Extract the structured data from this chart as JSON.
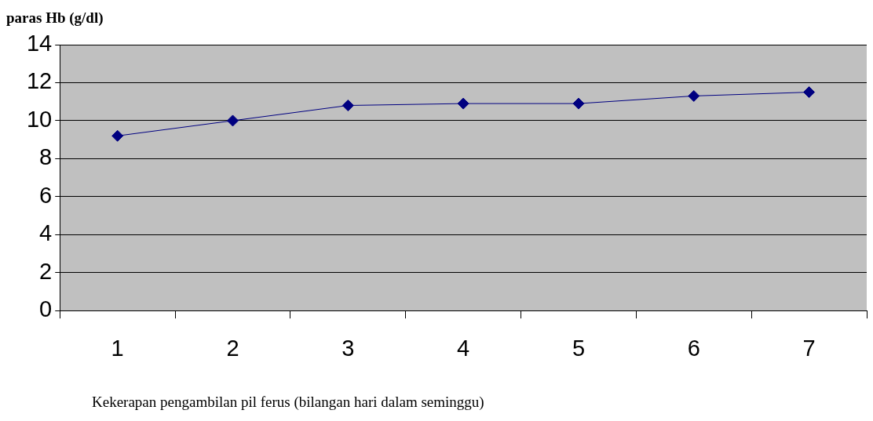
{
  "chart_data": {
    "type": "line",
    "ylabel": "paras Hb (g/dl)",
    "xlabel": "Kekerapan pengambilan pil ferus (bilangan hari dalam seminggu)",
    "categories": [
      "1",
      "2",
      "3",
      "4",
      "5",
      "6",
      "7"
    ],
    "series": [
      {
        "color": "#000080",
        "values": [
          9.2,
          10,
          10.8,
          10.9,
          10.9,
          11.3,
          11.5
        ]
      }
    ],
    "ylim": [
      0,
      14
    ],
    "yticks": [
      0,
      2,
      4,
      6,
      8,
      10,
      12,
      14
    ],
    "grid": "y",
    "legend": false,
    "marker": "diamond",
    "line_style": "solid"
  }
}
